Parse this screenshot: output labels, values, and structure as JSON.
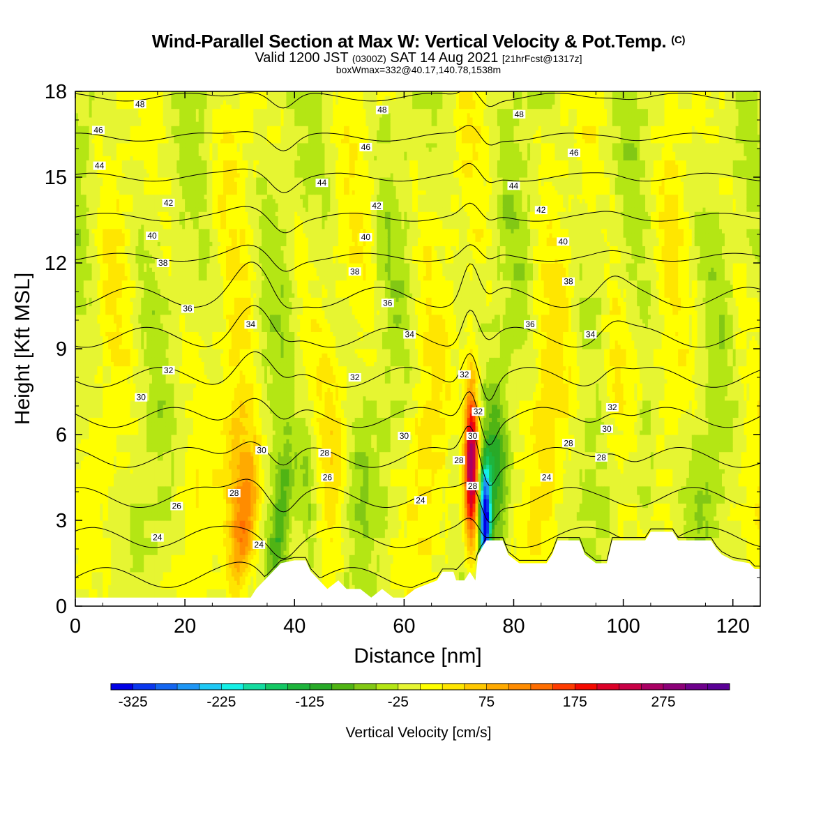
{
  "titles": {
    "main": "Wind-Parallel Section at Max W: Vertical Velocity & Pot.Temp.",
    "copyright": "(C)",
    "valid_prefix": "Valid 1200 JST",
    "valid_utc": "(0300Z)",
    "valid_date": "SAT 14 Aug 2021",
    "forecast": "[21hrFcst@1317z]",
    "box": "boxWmax=332@40.17,140.78,1538m"
  },
  "chart_data": {
    "type": "heatmap",
    "xlabel": "Distance [nm]",
    "ylabel": "Height [Kft MSL]",
    "xlim": [
      0,
      125
    ],
    "ylim": [
      0,
      18
    ],
    "x_ticks": [
      0,
      20,
      40,
      60,
      80,
      100,
      120
    ],
    "y_ticks": [
      0,
      3,
      6,
      9,
      12,
      15,
      18
    ],
    "colorbar": {
      "label": "Vertical Velocity [cm/s]",
      "tick_labels": [
        -325,
        -225,
        -125,
        -25,
        75,
        175,
        275
      ],
      "range": [
        -350,
        350
      ],
      "step": 25,
      "colors": [
        "#0000e6",
        "#0a37ee",
        "#1466f0",
        "#1e96f5",
        "#1ec8f5",
        "#14f0e6",
        "#14dca0",
        "#14c864",
        "#1eb43c",
        "#28aa28",
        "#50b414",
        "#82c814",
        "#b4e614",
        "#e6f532",
        "#ffff00",
        "#ffe600",
        "#ffc800",
        "#ffaa00",
        "#ff8c00",
        "#ff6e00",
        "#ff3c00",
        "#f50a00",
        "#dc0028",
        "#c80046",
        "#aa0064",
        "#8c0078",
        "#6e008c",
        "#5a0096"
      ]
    },
    "theta_contours": {
      "levels": [
        24,
        26,
        28,
        30,
        32,
        34,
        36,
        38,
        40,
        42,
        44,
        46,
        48
      ],
      "labels": [
        {
          "text": "48",
          "x": 11.8,
          "y": 17.55
        },
        {
          "text": "48",
          "x": 56,
          "y": 17.35
        },
        {
          "text": "48",
          "x": 81,
          "y": 17.2
        },
        {
          "text": "46",
          "x": 4.2,
          "y": 16.65
        },
        {
          "text": "46",
          "x": 53,
          "y": 16.05
        },
        {
          "text": "46",
          "x": 91,
          "y": 15.85
        },
        {
          "text": "44",
          "x": 4.4,
          "y": 15.4
        },
        {
          "text": "44",
          "x": 45,
          "y": 14.8
        },
        {
          "text": "44",
          "x": 80,
          "y": 14.7
        },
        {
          "text": "42",
          "x": 17,
          "y": 14.1
        },
        {
          "text": "42",
          "x": 55,
          "y": 14.0
        },
        {
          "text": "42",
          "x": 85,
          "y": 13.85
        },
        {
          "text": "40",
          "x": 14,
          "y": 12.95
        },
        {
          "text": "40",
          "x": 53,
          "y": 12.9
        },
        {
          "text": "40",
          "x": 89,
          "y": 12.75
        },
        {
          "text": "38",
          "x": 16,
          "y": 12.0
        },
        {
          "text": "38",
          "x": 51,
          "y": 11.7
        },
        {
          "text": "38",
          "x": 90,
          "y": 11.35
        },
        {
          "text": "36",
          "x": 20.5,
          "y": 10.4
        },
        {
          "text": "36",
          "x": 57,
          "y": 10.6
        },
        {
          "text": "36",
          "x": 83,
          "y": 9.85
        },
        {
          "text": "34",
          "x": 32,
          "y": 9.85
        },
        {
          "text": "34",
          "x": 61,
          "y": 9.5
        },
        {
          "text": "34",
          "x": 94,
          "y": 9.5
        },
        {
          "text": "32",
          "x": 17,
          "y": 8.25
        },
        {
          "text": "32",
          "x": 51,
          "y": 8.0
        },
        {
          "text": "32",
          "x": 71,
          "y": 8.1
        },
        {
          "text": "32",
          "x": 73.5,
          "y": 6.8
        },
        {
          "text": "32",
          "x": 98,
          "y": 6.95
        },
        {
          "text": "30",
          "x": 12,
          "y": 7.3
        },
        {
          "text": "30",
          "x": 34,
          "y": 5.45
        },
        {
          "text": "30",
          "x": 60,
          "y": 5.95
        },
        {
          "text": "30",
          "x": 72.5,
          "y": 5.95
        },
        {
          "text": "30",
          "x": 97,
          "y": 6.2
        },
        {
          "text": "28",
          "x": 45.5,
          "y": 5.35
        },
        {
          "text": "28",
          "x": 70,
          "y": 5.1
        },
        {
          "text": "28",
          "x": 72.5,
          "y": 4.2
        },
        {
          "text": "28",
          "x": 90,
          "y": 5.7
        },
        {
          "text": "28",
          "x": 96,
          "y": 5.2
        },
        {
          "text": "28",
          "x": 29,
          "y": 3.95
        },
        {
          "text": "26",
          "x": 46,
          "y": 4.5
        },
        {
          "text": "26",
          "x": 18.5,
          "y": 3.5
        },
        {
          "text": "24",
          "x": 63,
          "y": 3.7
        },
        {
          "text": "24",
          "x": 86,
          "y": 4.5
        },
        {
          "text": "24",
          "x": 15,
          "y": 2.4
        },
        {
          "text": "24",
          "x": 33.5,
          "y": 2.15
        }
      ]
    },
    "terrain_nm_kft": [
      [
        0,
        0.3
      ],
      [
        10,
        0.3
      ],
      [
        20,
        0.3
      ],
      [
        30,
        0.3
      ],
      [
        32,
        0.3
      ],
      [
        33,
        0.6
      ],
      [
        34.5,
        0.9
      ],
      [
        36,
        1.2
      ],
      [
        37.5,
        1.5
      ],
      [
        40,
        1.6
      ],
      [
        42,
        1.6
      ],
      [
        43,
        1.2
      ],
      [
        44.5,
        0.9
      ],
      [
        46,
        0.6
      ],
      [
        48,
        0.9
      ],
      [
        49.5,
        0.6
      ],
      [
        52,
        0.6
      ],
      [
        54,
        0.3
      ],
      [
        56,
        0.6
      ],
      [
        58,
        0.3
      ],
      [
        60,
        0.3
      ],
      [
        62,
        0.6
      ],
      [
        66,
        0.9
      ],
      [
        67,
        1.2
      ],
      [
        69,
        1.2
      ],
      [
        69.5,
        0.9
      ],
      [
        71,
        0.9
      ],
      [
        72,
        1.2
      ],
      [
        73,
        0.9
      ],
      [
        73.5,
        1.8
      ],
      [
        75,
        2.3
      ],
      [
        78,
        2.3
      ],
      [
        79,
        1.8
      ],
      [
        81,
        1.5
      ],
      [
        86,
        1.5
      ],
      [
        87,
        1.8
      ],
      [
        88,
        2.3
      ],
      [
        92,
        2.3
      ],
      [
        93,
        1.8
      ],
      [
        95,
        1.5
      ],
      [
        97,
        1.5
      ],
      [
        98,
        2.3
      ],
      [
        104,
        2.3
      ],
      [
        105,
        2.6
      ],
      [
        109,
        2.6
      ],
      [
        110,
        2.3
      ],
      [
        116,
        2.3
      ],
      [
        117,
        2.0
      ],
      [
        118,
        1.8
      ],
      [
        120,
        1.6
      ],
      [
        123,
        1.5
      ],
      [
        124,
        1.3
      ],
      [
        125,
        1.3
      ]
    ]
  }
}
